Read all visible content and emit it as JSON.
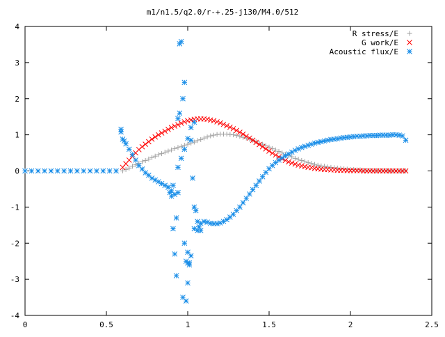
{
  "chart_data": {
    "type": "scatter",
    "title": "m1/n1.5/q2.0/r-+.25-j130/M4.0/512",
    "xlabel": "",
    "ylabel": "",
    "xlim": [
      0,
      2.5
    ],
    "ylim": [
      -4,
      4
    ],
    "x_ticks": [
      0,
      0.5,
      1,
      1.5,
      2,
      2.5
    ],
    "x_tick_labels": [
      "0",
      "0.5",
      "1",
      "1.5",
      "2",
      "2.5"
    ],
    "y_ticks": [
      -4,
      -3,
      -2,
      -1,
      0,
      1,
      2,
      3,
      4
    ],
    "y_tick_labels": [
      "-4",
      "-3",
      "-2",
      "-1",
      "0",
      "1",
      "2",
      "3",
      "4"
    ],
    "grid": false,
    "legend_placement": "top-right",
    "series": [
      {
        "name": "R stress/E",
        "marker": "plus",
        "color": "#a0a0a0",
        "x": [
          0.6,
          0.62,
          0.64,
          0.66,
          0.68,
          0.7,
          0.72,
          0.74,
          0.76,
          0.78,
          0.8,
          0.82,
          0.84,
          0.86,
          0.88,
          0.9,
          0.92,
          0.94,
          0.96,
          0.98,
          1.0,
          1.02,
          1.04,
          1.06,
          1.08,
          1.1,
          1.12,
          1.14,
          1.16,
          1.18,
          1.2,
          1.22,
          1.24,
          1.26,
          1.28,
          1.3,
          1.32,
          1.34,
          1.36,
          1.38,
          1.4,
          1.42,
          1.44,
          1.46,
          1.48,
          1.5,
          1.52,
          1.54,
          1.56,
          1.58,
          1.6,
          1.62,
          1.64,
          1.66,
          1.68,
          1.7,
          1.72,
          1.74,
          1.76,
          1.78,
          1.8,
          1.82,
          1.84,
          1.86,
          1.88,
          1.9,
          1.92,
          1.94,
          1.96,
          1.98,
          2.0,
          2.02,
          2.04,
          2.06,
          2.08,
          2.1,
          2.12,
          2.14,
          2.16,
          2.18,
          2.2,
          2.22,
          2.24,
          2.26,
          2.28,
          2.3,
          2.32,
          2.34
        ],
        "y": [
          0.0,
          0.04,
          0.08,
          0.13,
          0.17,
          0.21,
          0.25,
          0.29,
          0.33,
          0.37,
          0.41,
          0.45,
          0.48,
          0.52,
          0.55,
          0.58,
          0.62,
          0.65,
          0.68,
          0.71,
          0.74,
          0.77,
          0.8,
          0.84,
          0.87,
          0.91,
          0.94,
          0.97,
          0.99,
          1.01,
          1.02,
          1.02,
          1.02,
          1.01,
          1.0,
          0.98,
          0.96,
          0.93,
          0.91,
          0.88,
          0.85,
          0.81,
          0.77,
          0.74,
          0.7,
          0.66,
          0.62,
          0.58,
          0.54,
          0.5,
          0.46,
          0.42,
          0.39,
          0.35,
          0.32,
          0.29,
          0.26,
          0.23,
          0.21,
          0.18,
          0.16,
          0.14,
          0.13,
          0.11,
          0.1,
          0.09,
          0.08,
          0.07,
          0.06,
          0.05,
          0.04,
          0.04,
          0.03,
          0.03,
          0.02,
          0.02,
          0.02,
          0.01,
          0.01,
          0.01,
          0.01,
          0.01,
          0.0,
          0.0,
          0.0,
          0.0,
          0.0,
          0.0
        ]
      },
      {
        "name": "G work/E",
        "marker": "cross",
        "color": "#ff0000",
        "x": [
          0.6,
          0.62,
          0.64,
          0.66,
          0.68,
          0.7,
          0.72,
          0.74,
          0.76,
          0.78,
          0.8,
          0.82,
          0.84,
          0.86,
          0.88,
          0.9,
          0.92,
          0.94,
          0.96,
          0.98,
          1.0,
          1.02,
          1.04,
          1.06,
          1.08,
          1.1,
          1.12,
          1.14,
          1.16,
          1.18,
          1.2,
          1.22,
          1.24,
          1.26,
          1.28,
          1.3,
          1.32,
          1.34,
          1.36,
          1.38,
          1.4,
          1.42,
          1.44,
          1.46,
          1.48,
          1.5,
          1.52,
          1.54,
          1.56,
          1.58,
          1.6,
          1.62,
          1.64,
          1.66,
          1.68,
          1.7,
          1.72,
          1.74,
          1.76,
          1.78,
          1.8,
          1.82,
          1.84,
          1.86,
          1.88,
          1.9,
          1.92,
          1.94,
          1.96,
          1.98,
          2.0,
          2.02,
          2.04,
          2.06,
          2.08,
          2.1,
          2.12,
          2.14,
          2.16,
          2.18,
          2.2,
          2.22,
          2.24,
          2.26,
          2.28,
          2.3,
          2.32,
          2.34
        ],
        "y": [
          0.1,
          0.2,
          0.3,
          0.4,
          0.5,
          0.59,
          0.67,
          0.74,
          0.81,
          0.88,
          0.94,
          1.0,
          1.05,
          1.1,
          1.15,
          1.2,
          1.24,
          1.28,
          1.32,
          1.36,
          1.39,
          1.41,
          1.43,
          1.44,
          1.44,
          1.44,
          1.43,
          1.41,
          1.39,
          1.36,
          1.33,
          1.29,
          1.25,
          1.21,
          1.17,
          1.12,
          1.07,
          1.02,
          0.96,
          0.91,
          0.85,
          0.79,
          0.73,
          0.67,
          0.61,
          0.55,
          0.49,
          0.44,
          0.39,
          0.34,
          0.29,
          0.25,
          0.22,
          0.19,
          0.16,
          0.14,
          0.12,
          0.1,
          0.09,
          0.07,
          0.06,
          0.05,
          0.04,
          0.04,
          0.03,
          0.03,
          0.02,
          0.02,
          0.02,
          0.01,
          0.01,
          0.01,
          0.01,
          0.01,
          0.0,
          0.0,
          0.0,
          0.0,
          0.0,
          0.0,
          0.0,
          0.0,
          0.0,
          0.0,
          0.0,
          0.0,
          0.0,
          0.0
        ]
      },
      {
        "name": "Acoustic flux/E",
        "marker": "star",
        "color": "#1a8ee8",
        "x": [
          0.0,
          0.04,
          0.08,
          0.12,
          0.16,
          0.2,
          0.24,
          0.28,
          0.32,
          0.36,
          0.4,
          0.44,
          0.48,
          0.52,
          0.56,
          0.59,
          0.59,
          0.6,
          0.61,
          0.62,
          0.64,
          0.66,
          0.68,
          0.7,
          0.72,
          0.74,
          0.76,
          0.78,
          0.8,
          0.82,
          0.84,
          0.86,
          0.88,
          0.9,
          0.92,
          0.94,
          0.96,
          0.98,
          1.0,
          1.02,
          1.04,
          1.06,
          1.08,
          1.1,
          1.12,
          1.14,
          1.16,
          1.18,
          1.2,
          1.22,
          1.24,
          1.26,
          1.28,
          1.3,
          1.32,
          1.34,
          1.36,
          1.38,
          1.4,
          1.42,
          1.44,
          1.46,
          1.48,
          1.5,
          1.52,
          1.54,
          1.56,
          1.58,
          1.6,
          1.62,
          1.64,
          1.66,
          1.68,
          1.7,
          1.72,
          1.74,
          1.76,
          1.78,
          1.8,
          1.82,
          1.84,
          1.86,
          1.88,
          1.9,
          1.92,
          1.94,
          1.96,
          1.98,
          2.0,
          2.02,
          2.04,
          2.06,
          2.08,
          2.1,
          2.12,
          2.14,
          2.16,
          2.18,
          2.2,
          2.22,
          2.24,
          2.26,
          2.28,
          2.3,
          2.32,
          2.34,
          0.88,
          0.89,
          0.9,
          0.91,
          0.92,
          0.93,
          0.94,
          0.95,
          0.95,
          0.96,
          0.97,
          0.97,
          0.98,
          0.99,
          0.99,
          1.0,
          1.0,
          1.01,
          1.01,
          1.02,
          1.03,
          1.04,
          1.04,
          1.05,
          1.06,
          1.07,
          1.08,
          0.91,
          0.93,
          0.94,
          0.98,
          1.0,
          1.02
        ],
        "y": [
          0.0,
          0.0,
          0.0,
          0.0,
          0.0,
          0.0,
          0.0,
          0.0,
          0.0,
          0.0,
          0.0,
          0.0,
          0.0,
          0.0,
          0.0,
          1.15,
          1.08,
          0.88,
          0.83,
          0.75,
          0.6,
          0.45,
          0.3,
          0.15,
          0.05,
          -0.05,
          -0.12,
          -0.2,
          -0.25,
          -0.3,
          -0.35,
          -0.4,
          -0.45,
          -0.55,
          -0.65,
          0.1,
          0.35,
          0.6,
          0.9,
          1.2,
          1.35,
          -1.65,
          -1.45,
          -1.4,
          -1.42,
          -1.45,
          -1.46,
          -1.46,
          -1.44,
          -1.4,
          -1.35,
          -1.28,
          -1.2,
          -1.1,
          -1.0,
          -0.88,
          -0.76,
          -0.64,
          -0.52,
          -0.4,
          -0.28,
          -0.16,
          -0.04,
          0.06,
          0.15,
          0.23,
          0.3,
          0.36,
          0.42,
          0.47,
          0.52,
          0.57,
          0.61,
          0.65,
          0.68,
          0.71,
          0.74,
          0.77,
          0.79,
          0.81,
          0.83,
          0.85,
          0.87,
          0.88,
          0.89,
          0.91,
          0.92,
          0.93,
          0.94,
          0.95,
          0.96,
          0.96,
          0.97,
          0.97,
          0.98,
          0.98,
          0.98,
          0.99,
          0.99,
          0.99,
          0.99,
          1.0,
          1.0,
          0.99,
          0.97,
          0.85,
          -0.45,
          -0.6,
          -0.7,
          -1.6,
          -2.3,
          -2.9,
          1.45,
          1.6,
          3.52,
          3.58,
          2.0,
          -3.5,
          2.45,
          -3.6,
          -2.5,
          -2.25,
          -3.1,
          -2.55,
          -2.6,
          -2.35,
          -0.2,
          -1.0,
          -1.6,
          -1.1,
          -1.4,
          -1.55,
          -1.65,
          -0.4,
          -1.3,
          -0.6,
          -2.0,
          -2.55,
          0.85
        ]
      }
    ]
  }
}
